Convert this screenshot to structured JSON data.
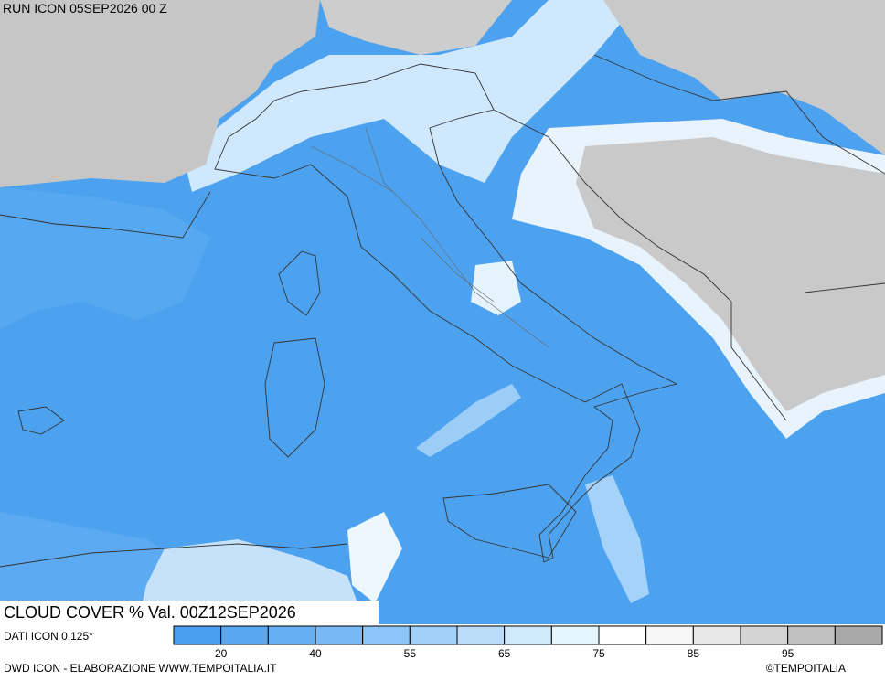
{
  "header": {
    "run": "RUN ICON 05SEP2026 00 Z"
  },
  "map": {
    "caption": "CLOUD COVER % Val. 00Z12SEP2026"
  },
  "legend": {
    "source": "DATI ICON 0.125°",
    "colors": [
      "#4a9ff0",
      "#57a7f2",
      "#66aff3",
      "#78b9f5",
      "#8cc5f7",
      "#a2d0f8",
      "#badcf9",
      "#d0e9fb",
      "#e6f6fd",
      "#ffffff",
      "#f7f7f7",
      "#e8e8e8",
      "#d4d4d4",
      "#c0c0c0",
      "#a9a9a9"
    ],
    "labels": [
      "20",
      "40",
      "55",
      "65",
      "75",
      "85",
      "95"
    ]
  },
  "footer": {
    "credit": "DWD ICON - ELABORAZIONE WWW.TEMPOITALIA.IT",
    "copyright": "©TEMPOITALIA"
  }
}
